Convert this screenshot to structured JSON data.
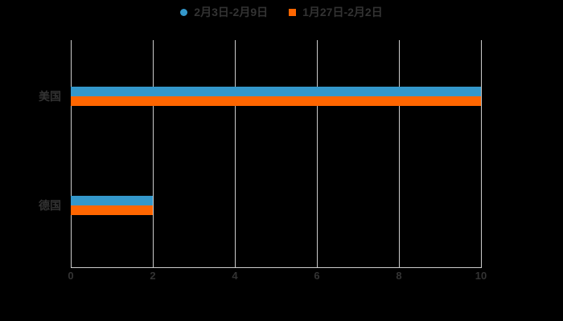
{
  "chart_data": {
    "type": "bar",
    "orientation": "horizontal",
    "title": "",
    "background_color": "#000000",
    "text_color": "#333333",
    "grid_color": "#cccccc",
    "grid": "vertical-only",
    "legend_position": "top-center",
    "categories": [
      "美国",
      "德国"
    ],
    "series": [
      {
        "name": "2月3日-2月9日",
        "marker": "circle",
        "color": "#3498cb",
        "values": [
          10,
          2
        ]
      },
      {
        "name": "1月27日-2月2日",
        "marker": "square",
        "color": "#ff6600",
        "values": [
          10,
          2
        ]
      }
    ],
    "xlim": [
      0,
      10
    ],
    "x_ticks": [
      0,
      2,
      4,
      6,
      8,
      10
    ]
  }
}
